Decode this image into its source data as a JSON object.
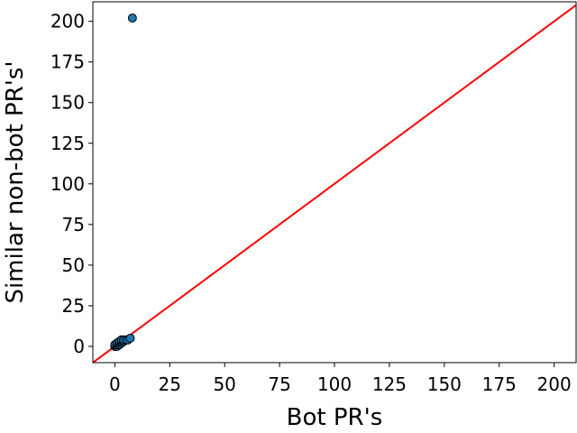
{
  "chart_data": {
    "type": "scatter",
    "xlabel": "Bot PR's",
    "ylabel": "Similar non-bot PR's'",
    "xlim": [
      -10,
      210
    ],
    "ylim": [
      -10,
      212
    ],
    "x_ticks": [
      0,
      25,
      50,
      75,
      100,
      125,
      150,
      175,
      200
    ],
    "y_ticks": [
      0,
      25,
      50,
      75,
      100,
      125,
      150,
      175,
      200
    ],
    "grid": false,
    "points": [
      {
        "x": 0,
        "y": 0
      },
      {
        "x": 0,
        "y": 1
      },
      {
        "x": 1,
        "y": 0
      },
      {
        "x": 1,
        "y": 1
      },
      {
        "x": 1,
        "y": 2
      },
      {
        "x": 2,
        "y": 1
      },
      {
        "x": 2,
        "y": 2
      },
      {
        "x": 2,
        "y": 3
      },
      {
        "x": 3,
        "y": 2
      },
      {
        "x": 3,
        "y": 3
      },
      {
        "x": 3,
        "y": 4
      },
      {
        "x": 4,
        "y": 3
      },
      {
        "x": 4,
        "y": 4
      },
      {
        "x": 5,
        "y": 4
      },
      {
        "x": 6,
        "y": 4
      },
      {
        "x": 7,
        "y": 5
      },
      {
        "x": 8,
        "y": 202
      }
    ],
    "reference_line": {
      "from": [
        -10,
        -10
      ],
      "to": [
        212,
        212
      ]
    },
    "colors": {
      "marker_fill": "#1f77b4",
      "marker_edge": "#000000",
      "line": "#ff0000"
    }
  }
}
